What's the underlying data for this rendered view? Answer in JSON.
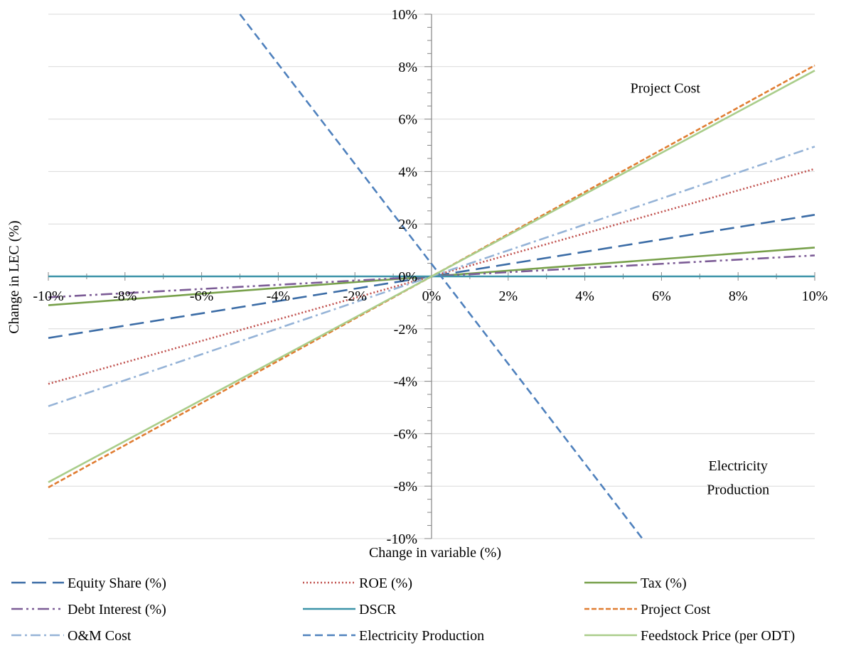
{
  "chart_data": {
    "type": "line",
    "title": "",
    "xlabel": "Change in variable (%)",
    "ylabel": "Change in LEC (%)",
    "xlim": [
      -10,
      10
    ],
    "ylim": [
      -10,
      10
    ],
    "x_ticks": [
      -10,
      -8,
      -6,
      -4,
      -2,
      0,
      2,
      4,
      6,
      8,
      10
    ],
    "y_ticks": [
      -10,
      -8,
      -6,
      -4,
      -2,
      0,
      2,
      4,
      6,
      8,
      10
    ],
    "x_tick_labels": [
      "-10%",
      "-8%",
      "-6%",
      "-4%",
      "-2%",
      "0%",
      "2%",
      "4%",
      "6%",
      "8%",
      "10%"
    ],
    "y_tick_labels": [
      "-10%",
      "-8%",
      "-6%",
      "-4%",
      "-2%",
      "0%",
      "2%",
      "4%",
      "6%",
      "8%",
      "10%"
    ],
    "grid": "horizontal",
    "legend_position": "bottom",
    "series": [
      {
        "name": "Equity Share (%)",
        "color": "#3b6ca6",
        "dash": "long-dash",
        "x": [
          -10,
          10
        ],
        "y": [
          -2.35,
          2.35
        ]
      },
      {
        "name": "ROE (%)",
        "color": "#c0504d",
        "dash": "dotted",
        "x": [
          -10,
          10
        ],
        "y": [
          -4.1,
          4.1
        ]
      },
      {
        "name": "Tax (%)",
        "color": "#77a04a",
        "dash": "solid",
        "x": [
          -10,
          10
        ],
        "y": [
          -1.1,
          1.1
        ]
      },
      {
        "name": "Debt Interest (%)",
        "color": "#7c5c96",
        "dash": "long-dash-dot-dot",
        "x": [
          -10,
          10
        ],
        "y": [
          -0.8,
          0.8
        ]
      },
      {
        "name": "DSCR",
        "color": "#3c93a8",
        "dash": "solid",
        "x": [
          -10,
          10
        ],
        "y": [
          0,
          0
        ]
      },
      {
        "name": "Project Cost",
        "color": "#e07d32",
        "dash": "short-dash",
        "x": [
          -10,
          10
        ],
        "y": [
          -8.05,
          8.05
        ]
      },
      {
        "name": "O&M Cost",
        "color": "#95b3d7",
        "dash": "dash-dot",
        "x": [
          -10,
          10
        ],
        "y": [
          -4.95,
          4.95
        ]
      },
      {
        "name": "Electricity Production",
        "color": "#4f81bd",
        "dash": "dash",
        "x": [
          -5,
          5.5
        ],
        "y": [
          10,
          -10
        ]
      },
      {
        "name": "Feedstock Price (per ODT)",
        "color": "#a9cd8a",
        "dash": "solid",
        "x": [
          -10,
          10
        ],
        "y": [
          -7.85,
          7.85
        ]
      }
    ],
    "annotations": [
      {
        "text": "Project Cost",
        "x": 6.1,
        "y": 7.0
      },
      {
        "text": "Electricity",
        "x": 8.0,
        "y": -7.4
      },
      {
        "text": "Production",
        "x": 8.0,
        "y": -8.3
      }
    ]
  }
}
